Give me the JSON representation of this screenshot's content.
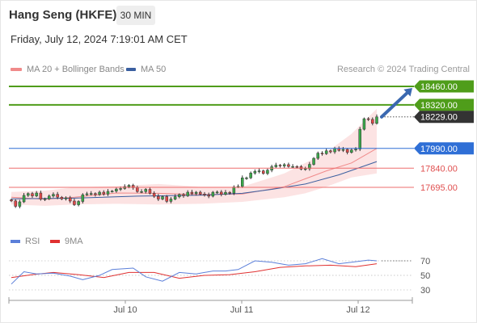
{
  "header": {
    "instrument": "Hang Seng (HKFE)",
    "timeframe": "30 MIN",
    "datetime": "Friday, July 12, 2024 7:19:01 AM CET"
  },
  "legend": {
    "items": [
      {
        "label": "MA 20 + Bollinger Bands",
        "color": "#f08a8a"
      },
      {
        "label": "MA 50",
        "color": "#3a5fa0"
      }
    ],
    "credit": "Research © 2024 Trading Central"
  },
  "levels": [
    {
      "value": 18460,
      "label": "18460.00",
      "kind": "resistance",
      "color": "#4f9d1a"
    },
    {
      "value": 18320,
      "label": "18320.00",
      "kind": "resistance",
      "color": "#4f9d1a"
    },
    {
      "value": 18229,
      "label": "18229.00",
      "kind": "last",
      "color": "#333333"
    },
    {
      "value": 17990,
      "label": "17990.00",
      "kind": "pivot",
      "color": "#2f6fd6"
    },
    {
      "value": 17840,
      "label": "17840.00",
      "kind": "support",
      "color": "#ee6e6e"
    },
    {
      "value": 17695,
      "label": "17695.00",
      "kind": "support",
      "color": "#ee6e6e"
    }
  ],
  "rsi_panel": {
    "legend": [
      {
        "label": "RSI",
        "color": "#5b7fd9"
      },
      {
        "label": "9MA",
        "color": "#e03030"
      }
    ],
    "levels": [
      "70",
      "50",
      "30"
    ]
  },
  "x_axis": {
    "ticks": [
      "Jul 10",
      "Jul 11",
      "Jul 12"
    ]
  },
  "chart_data": {
    "type": "candlestick",
    "closes": [
      17592,
      17551,
      17585,
      17634,
      17648,
      17630,
      17652,
      17606,
      17608,
      17629,
      17642,
      17620,
      17607,
      17615,
      17591,
      17563,
      17588,
      17639,
      17646,
      17648,
      17640,
      17658,
      17644,
      17664,
      17666,
      17682,
      17686,
      17700,
      17710,
      17692,
      17663,
      17663,
      17680,
      17650,
      17627,
      17606,
      17625,
      17589,
      17606,
      17624,
      17640,
      17631,
      17658,
      17648,
      17658,
      17644,
      17637,
      17628,
      17658,
      17659,
      17642,
      17657,
      17651,
      17698,
      17702,
      17767,
      17767,
      17803,
      17816,
      17820,
      17800,
      17825,
      17851,
      17863,
      17857,
      17867,
      17853,
      17853,
      17852,
      17833,
      17836,
      17869,
      17915,
      17954,
      17950,
      17972,
      17964,
      17990,
      17975,
      17983,
      17960,
      17978,
      17985,
      18135,
      18215,
      18210,
      18180,
      18229
    ],
    "ma20_x": [
      0,
      8,
      15,
      25,
      35,
      45,
      55,
      65,
      70,
      75,
      81,
      87
    ],
    "ma20": [
      17620,
      17605,
      17620,
      17652,
      17650,
      17640,
      17645,
      17700,
      17760,
      17820,
      17880,
      17990
    ],
    "bb_upper": [
      17660,
      17670,
      17695,
      17705,
      17720,
      17700,
      17700,
      17800,
      17880,
      17960,
      18100,
      18290
    ],
    "bb_lower": [
      17565,
      17555,
      17565,
      17570,
      17565,
      17570,
      17585,
      17620,
      17650,
      17700,
      17770,
      17800
    ],
    "ma50_x": [
      0,
      15,
      30,
      45,
      55,
      62,
      70,
      78,
      87
    ],
    "ma50": [
      17608,
      17613,
      17628,
      17635,
      17650,
      17680,
      17720,
      17790,
      17890
    ],
    "forecast_arrow": {
      "from": 18229,
      "to": 18460
    },
    "rsi_x": [
      0,
      3,
      6,
      10,
      14,
      17,
      21,
      24,
      29,
      32,
      36,
      40,
      44,
      48,
      51,
      54,
      58,
      62,
      66,
      70,
      74,
      78,
      81,
      85,
      87
    ],
    "rsi": [
      38,
      55,
      52,
      53,
      49,
      44,
      50,
      58,
      60,
      48,
      42,
      54,
      52,
      56,
      56,
      58,
      70,
      68,
      64,
      66,
      73,
      66,
      68,
      71,
      70
    ],
    "rsi_ma_x": [
      0,
      5,
      10,
      16,
      22,
      28,
      34,
      40,
      46,
      52,
      58,
      64,
      70,
      76,
      82,
      87
    ],
    "rsi_ma": [
      47,
      51,
      54,
      51,
      47,
      54,
      54,
      46,
      50,
      51,
      55,
      61,
      63,
      64,
      62,
      66
    ],
    "rsi_ylim": [
      20,
      80
    ],
    "price_ylim": [
      17520,
      18580
    ]
  }
}
